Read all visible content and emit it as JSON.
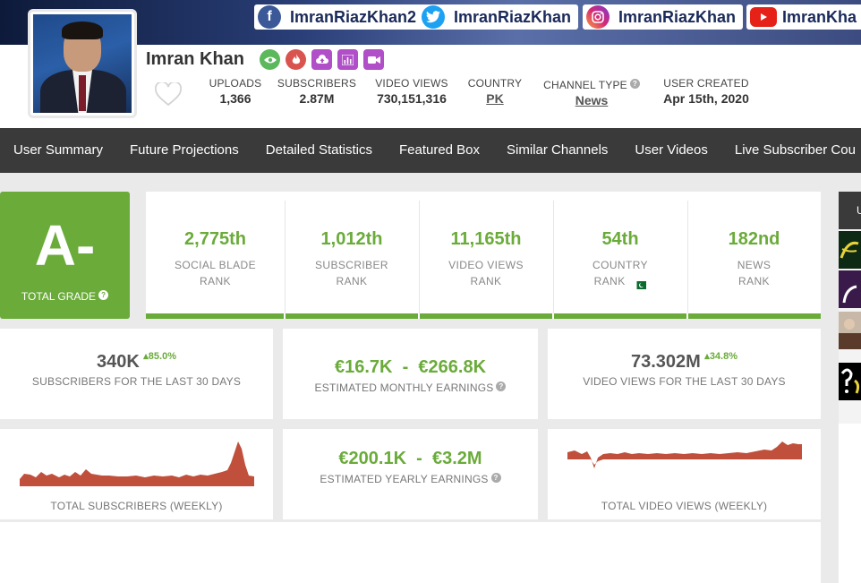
{
  "banner": {
    "facebook": "ImranRiazKhan2",
    "twitter": "ImranRiazKhan",
    "instagram": "ImranRiazKhan",
    "youtube": "ImranKha"
  },
  "profile": {
    "name": "Imran Khan",
    "stats": [
      {
        "label": "UPLOADS",
        "value": "1,366"
      },
      {
        "label": "SUBSCRIBERS",
        "value": "2.87M"
      },
      {
        "label": "VIDEO VIEWS",
        "value": "730,151,316"
      },
      {
        "label": "COUNTRY",
        "value": "PK"
      },
      {
        "label": "CHANNEL TYPE",
        "value": "News"
      },
      {
        "label": "USER CREATED",
        "value": "Apr 15th, 2020"
      }
    ]
  },
  "nav": [
    "User Summary",
    "Future Projections",
    "Detailed Statistics",
    "Featured Box",
    "Similar Channels",
    "User Videos",
    "Live Subscriber Cou"
  ],
  "grade": {
    "value": "A-",
    "label": "TOTAL GRADE"
  },
  "ranks": [
    {
      "value": "2,775th",
      "line1": "SOCIAL BLADE",
      "line2": "RANK"
    },
    {
      "value": "1,012th",
      "line1": "SUBSCRIBER",
      "line2": "RANK"
    },
    {
      "value": "11,165th",
      "line1": "VIDEO VIEWS",
      "line2": "RANK"
    },
    {
      "value": "54th",
      "line1": "COUNTRY",
      "line2": "RANK"
    },
    {
      "value": "182nd",
      "line1": "NEWS",
      "line2": "RANK"
    }
  ],
  "cards": {
    "subs30": {
      "value": "340K",
      "change": "85.0%",
      "label": "SUBSCRIBERS FOR THE LAST 30 DAYS"
    },
    "monthly": {
      "low": "€16.7K",
      "sep": "-",
      "high": "€266.8K",
      "label": "ESTIMATED MONTHLY EARNINGS"
    },
    "views30": {
      "value": "73.302M",
      "change": "34.8%",
      "label": "VIDEO VIEWS FOR THE LAST 30 DAYS"
    },
    "subsWeekly": {
      "label": "TOTAL SUBSCRIBERS (WEEKLY)"
    },
    "yearly": {
      "low": "€200.1K",
      "sep": "-",
      "high": "€3.2M",
      "label": "ESTIMATED YEARLY EARNINGS"
    },
    "viewsWeekly": {
      "label": "TOTAL VIDEO VIEWS (WEEKLY)"
    }
  },
  "sidebar": {
    "head": "U"
  },
  "colors": {
    "accent": "#6aab3a",
    "nav": "#3a3a3a",
    "spark": "#c0503c"
  }
}
